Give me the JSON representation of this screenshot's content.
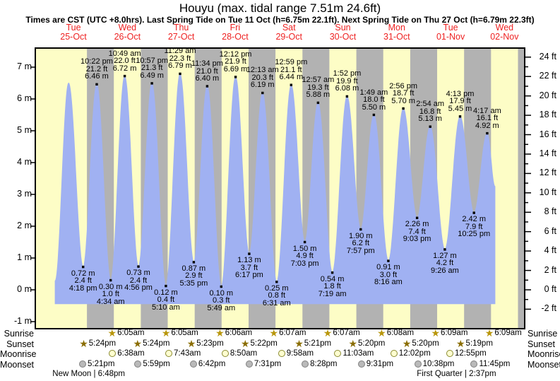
{
  "header": {
    "title": "Houyu (max. tidal range 7.51m 24.6ft)",
    "subtitle": "Times are CST (UTC +8.0hrs). Last Spring Tide on Tue 11 Oct (h=6.75m 22.1ft). Next Spring Tide on Thu 27 Oct (h=6.79m 22.3ft)"
  },
  "days": [
    {
      "name": "Tue",
      "date": "25-Oct"
    },
    {
      "name": "Wed",
      "date": "26-Oct"
    },
    {
      "name": "Thu",
      "date": "27-Oct"
    },
    {
      "name": "Fri",
      "date": "28-Oct"
    },
    {
      "name": "Sat",
      "date": "29-Oct"
    },
    {
      "name": "Sun",
      "date": "30-Oct"
    },
    {
      "name": "Mon",
      "date": "31-Oct"
    },
    {
      "name": "Tue",
      "date": "01-Nov"
    },
    {
      "name": "Wed",
      "date": "02-Nov"
    }
  ],
  "axes": {
    "left_unit": "m",
    "left_ticks": [
      7,
      6,
      5,
      4,
      3,
      2,
      1,
      0,
      -1
    ],
    "right_unit": "ft",
    "right_ticks_major": [
      24,
      22,
      20,
      18,
      16,
      14,
      12,
      10,
      8,
      6,
      4,
      2,
      0,
      -2
    ]
  },
  "chart_data": {
    "type": "area",
    "title": "Houyu tide heights",
    "ylabel_left": "height (m)",
    "ylabel_right": "height (ft)",
    "ylim_m": [
      -1.2,
      7.6
    ],
    "hours_before_first_day": 5,
    "total_hours": 218,
    "night_band_hours": [
      18,
      30
    ],
    "baseline_m": -0.44,
    "tide_events": [
      {
        "day": 0,
        "time": "3:50 am",
        "m": "0.28",
        "kind": "edge"
      },
      {
        "day": 0,
        "time": "9:50 am",
        "m": "6.50",
        "kind": "high",
        "labeled": false
      },
      {
        "day": 0,
        "time": "4:18 pm",
        "m": "0.72",
        "ft": "2.4",
        "kind": "low",
        "labeled": true
      },
      {
        "day": 0,
        "time": "10:22 pm",
        "m": "6.46",
        "ft": "21.2",
        "kind": "high",
        "labeled": true
      },
      {
        "day": 1,
        "time": "4:34 am",
        "m": "0.30",
        "ft": "1.0",
        "kind": "low",
        "labeled": true
      },
      {
        "day": 1,
        "time": "10:49 am",
        "m": "6.72",
        "ft": "22.0",
        "kind": "high",
        "labeled": true
      },
      {
        "day": 1,
        "time": "4:56 pm",
        "m": "0.73",
        "ft": "2.4",
        "kind": "low",
        "labeled": true
      },
      {
        "day": 1,
        "time": "10:57 pm",
        "m": "6.49",
        "ft": "21.3",
        "kind": "high",
        "labeled": true
      },
      {
        "day": 2,
        "time": "5:10 am",
        "m": "0.12",
        "ft": "0.4",
        "kind": "low",
        "labeled": true
      },
      {
        "day": 2,
        "time": "11:29 am",
        "m": "6.79",
        "ft": "22.3",
        "kind": "high",
        "labeled": true
      },
      {
        "day": 2,
        "time": "5:35 pm",
        "m": "0.87",
        "ft": "2.9",
        "kind": "low",
        "labeled": true
      },
      {
        "day": 2,
        "time": "11:34 pm",
        "m": "6.40",
        "ft": "21.0",
        "kind": "high",
        "labeled": true
      },
      {
        "day": 3,
        "time": "5:49 am",
        "m": "0.10",
        "ft": "0.3",
        "kind": "low",
        "labeled": true
      },
      {
        "day": 3,
        "time": "12:12 pm",
        "m": "6.69",
        "ft": "21.9",
        "kind": "high",
        "labeled": true
      },
      {
        "day": 3,
        "time": "6:17 pm",
        "m": "1.13",
        "ft": "3.7",
        "kind": "low",
        "labeled": true
      },
      {
        "day": 4,
        "time": "12:13 am",
        "m": "6.19",
        "ft": "20.3",
        "kind": "high",
        "labeled": true
      },
      {
        "day": 4,
        "time": "6:31 am",
        "m": "0.25",
        "ft": "0.8",
        "kind": "low",
        "labeled": true
      },
      {
        "day": 4,
        "time": "12:59 pm",
        "m": "6.44",
        "ft": "21.1",
        "kind": "high",
        "labeled": true
      },
      {
        "day": 4,
        "time": "7:03 pm",
        "m": "1.50",
        "ft": "4.9",
        "kind": "low",
        "labeled": true
      },
      {
        "day": 5,
        "time": "12:57 am",
        "m": "5.88",
        "ft": "19.3",
        "kind": "high",
        "labeled": true
      },
      {
        "day": 5,
        "time": "7:19 am",
        "m": "0.54",
        "ft": "1.8",
        "kind": "low",
        "labeled": true
      },
      {
        "day": 5,
        "time": "1:52 pm",
        "m": "6.08",
        "ft": "19.9",
        "kind": "high",
        "labeled": true
      },
      {
        "day": 5,
        "time": "7:57 pm",
        "m": "1.90",
        "ft": "6.2",
        "kind": "low",
        "labeled": true
      },
      {
        "day": 6,
        "time": "1:49 am",
        "m": "5.50",
        "ft": "18.0",
        "kind": "high",
        "labeled": true
      },
      {
        "day": 6,
        "time": "8:16 am",
        "m": "0.91",
        "ft": "3.0",
        "kind": "low",
        "labeled": true
      },
      {
        "day": 6,
        "time": "2:56 pm",
        "m": "5.70",
        "ft": "18.7",
        "kind": "high",
        "labeled": true
      },
      {
        "day": 6,
        "time": "9:03 pm",
        "m": "2.26",
        "ft": "7.4",
        "kind": "low",
        "labeled": true
      },
      {
        "day": 7,
        "time": "2:54 am",
        "m": "5.13",
        "ft": "16.8",
        "kind": "high",
        "labeled": true
      },
      {
        "day": 7,
        "time": "9:26 am",
        "m": "1.27",
        "ft": "4.2",
        "kind": "low",
        "labeled": true
      },
      {
        "day": 7,
        "time": "4:13 pm",
        "m": "5.45",
        "ft": "17.9",
        "kind": "high",
        "labeled": true
      },
      {
        "day": 7,
        "time": "10:25 pm",
        "m": "2.42",
        "ft": "7.9",
        "kind": "low",
        "labeled": true
      },
      {
        "day": 8,
        "time": "4:17 am",
        "m": "4.92",
        "ft": "16.1",
        "kind": "high",
        "labeled": true
      },
      {
        "day": 8,
        "time": "7:45 am",
        "m": "3.25",
        "kind": "edge"
      }
    ]
  },
  "astro": {
    "rows": [
      {
        "label": "Sunrise",
        "icon": "sunrise-star",
        "entries": [
          {
            "day": 1,
            "time": "6:05am"
          },
          {
            "day": 2,
            "time": "6:05am"
          },
          {
            "day": 3,
            "time": "6:06am"
          },
          {
            "day": 4,
            "time": "6:07am"
          },
          {
            "day": 5,
            "time": "6:07am"
          },
          {
            "day": 6,
            "time": "6:08am"
          },
          {
            "day": 7,
            "time": "6:09am"
          },
          {
            "day": 8,
            "time": "6:09am"
          }
        ]
      },
      {
        "label": "Sunset",
        "icon": "sunset-star",
        "entries": [
          {
            "day": 0,
            "time": "5:24pm"
          },
          {
            "day": 1,
            "time": "5:24pm"
          },
          {
            "day": 2,
            "time": "5:23pm"
          },
          {
            "day": 3,
            "time": "5:22pm"
          },
          {
            "day": 4,
            "time": "5:21pm"
          },
          {
            "day": 5,
            "time": "5:20pm"
          },
          {
            "day": 6,
            "time": "5:20pm"
          },
          {
            "day": 7,
            "time": "5:19pm"
          }
        ]
      },
      {
        "label": "Moonrise",
        "icon": "moonrise-circle",
        "entries": [
          {
            "day": 1,
            "time": "6:38am"
          },
          {
            "day": 2,
            "time": "7:43am"
          },
          {
            "day": 3,
            "time": "8:50am"
          },
          {
            "day": 4,
            "time": "9:58am"
          },
          {
            "day": 5,
            "time": "11:03am"
          },
          {
            "day": 6,
            "time": "12:02pm"
          },
          {
            "day": 7,
            "time": "12:55pm"
          }
        ]
      },
      {
        "label": "Moonset",
        "icon": "moonset-circle",
        "entries": [
          {
            "day": 0,
            "time": "5:21pm"
          },
          {
            "day": 1,
            "time": "5:59pm"
          },
          {
            "day": 2,
            "time": "6:42pm"
          },
          {
            "day": 3,
            "time": "7:31pm"
          },
          {
            "day": 4,
            "time": "8:28pm"
          },
          {
            "day": 5,
            "time": "9:31pm"
          },
          {
            "day": 6,
            "time": "10:38pm"
          },
          {
            "day": 7,
            "time": "11:45pm"
          }
        ]
      }
    ],
    "phases": [
      {
        "day": 0,
        "label": "New Moon",
        "time": "6:48pm"
      },
      {
        "day": 7,
        "label": "First Quarter",
        "time": "2:37pm"
      }
    ]
  },
  "colors": {
    "plot_background": "#fdfdc6",
    "night_band": "#b2b2b2",
    "tide_fill": "#a0b1f2",
    "day_label": "#ee2222",
    "frame": "#000000",
    "sunrise_star": "#b8960b",
    "sunset_star": "#8a6d00",
    "moonrise_fill": "#ffffd0",
    "moonrise_border": "#8a8a30",
    "moonset_fill": "#b9b9b9",
    "moonset_border": "#808080"
  }
}
